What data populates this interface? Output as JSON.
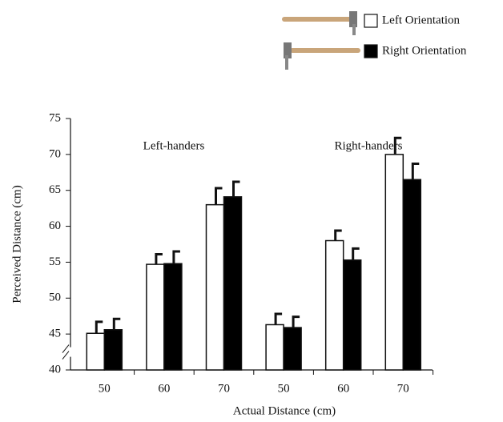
{
  "chart_data": {
    "type": "bar",
    "x_label": "Actual Distance (cm)",
    "y_label": "Perceived Distance (cm)",
    "annotations": [
      "Left-handers",
      "Right-handers"
    ],
    "categories": [
      "50",
      "60",
      "70",
      "50",
      "60",
      "70"
    ],
    "series": [
      {
        "name": "Left Orientation",
        "color": "#ffffff",
        "values": [
          45.1,
          54.7,
          63.0,
          46.3,
          58.0,
          70.0
        ],
        "errors": [
          1.6,
          1.4,
          2.3,
          1.5,
          1.4,
          2.3
        ]
      },
      {
        "name": "Right Orientation",
        "color": "#000000",
        "values": [
          45.6,
          54.8,
          64.1,
          45.9,
          55.3,
          66.5
        ],
        "errors": [
          1.5,
          1.7,
          2.1,
          1.5,
          1.6,
          2.2
        ]
      }
    ],
    "ylim": [
      40,
      75
    ],
    "yticks": [
      40,
      45,
      50,
      55,
      60,
      65,
      70,
      75
    ],
    "axis_break": true,
    "grid": false
  }
}
